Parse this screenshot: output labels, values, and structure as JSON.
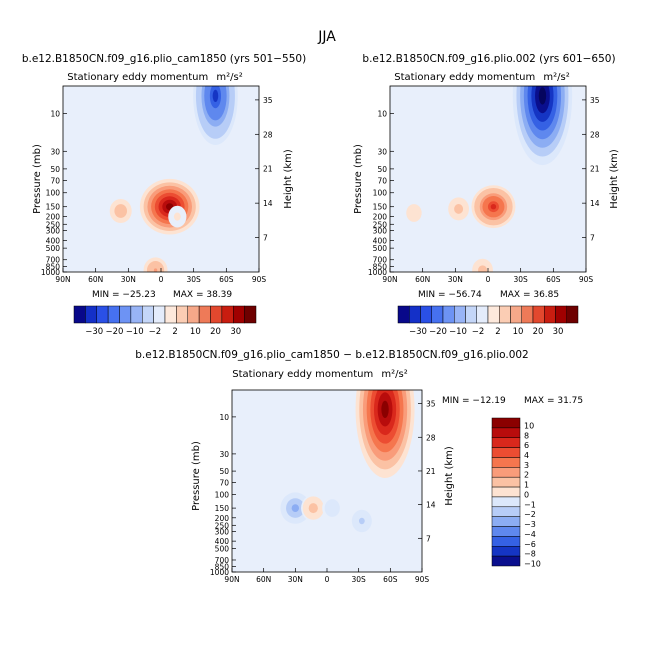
{
  "figure": {
    "title": "JJA"
  },
  "chart_data": [
    {
      "type": "heatmap",
      "case": "b.e12.B1850CN.f09_g16.plio_cam1850 (yrs 501−550)",
      "title": "Stationary eddy momentum",
      "units": "m²/s²",
      "xlabel": "",
      "ylabel": "Pressure (mb)",
      "ylabel_right": "Height (km)",
      "x_ticks": [
        "90N",
        "60N",
        "30N",
        "0",
        "30S",
        "60S",
        "90S"
      ],
      "y_ticks": [
        "10",
        "30",
        "50",
        "70",
        "100",
        "150",
        "200",
        "250",
        "300",
        "400",
        "500",
        "700",
        "850",
        "1000"
      ],
      "height_ticks": [
        "35",
        "28",
        "21",
        "14",
        "7"
      ],
      "min_label": "MIN = −25.23",
      "max_label": "MAX =  38.39",
      "min": -25.23,
      "max": 38.39,
      "features": [
        {
          "lat": -50,
          "p": 6,
          "value": -25
        },
        {
          "lat": -8,
          "p": 150,
          "value": 38
        },
        {
          "lat": 37,
          "p": 170,
          "value": 8
        },
        {
          "lat": -15,
          "p": 200,
          "value": 2
        },
        {
          "lat": 5,
          "p": 950,
          "value": 10
        }
      ]
    },
    {
      "type": "heatmap",
      "case": "b.e12.B1850CN.f09_g16.plio.002 (yrs 601−650)",
      "title": "Stationary eddy momentum",
      "units": "m²/s²",
      "ylabel": "Pressure (mb)",
      "ylabel_right": "Height (km)",
      "x_ticks": [
        "90N",
        "60N",
        "30N",
        "0",
        "30S",
        "60S",
        "90S"
      ],
      "y_ticks": [
        "10",
        "30",
        "50",
        "70",
        "100",
        "150",
        "200",
        "250",
        "300",
        "400",
        "500",
        "700",
        "850",
        "1000"
      ],
      "height_ticks": [
        "35",
        "28",
        "21",
        "14",
        "7"
      ],
      "min_label": "MIN = −56.74",
      "max_label": "MAX =  36.85",
      "min": -56.74,
      "max": 36.85,
      "features": [
        {
          "lat": -50,
          "p": 6,
          "value": -56
        },
        {
          "lat": -5,
          "p": 150,
          "value": 36
        },
        {
          "lat": 27,
          "p": 160,
          "value": 10
        },
        {
          "lat": 68,
          "p": 180,
          "value": 6
        },
        {
          "lat": 5,
          "p": 950,
          "value": 10
        }
      ]
    },
    {
      "type": "heatmap",
      "case": "b.e12.B1850CN.f09_g16.plio_cam1850 − b.e12.B1850CN.f09_g16.plio.002",
      "title": "Stationary eddy momentum",
      "units": "m²/s²",
      "ylabel": "Pressure (mb)",
      "ylabel_right": "Height (km)",
      "x_ticks": [
        "90N",
        "60N",
        "30N",
        "0",
        "30S",
        "60S",
        "90S"
      ],
      "y_ticks": [
        "10",
        "30",
        "50",
        "70",
        "100",
        "150",
        "200",
        "250",
        "300",
        "400",
        "500",
        "700",
        "850",
        "1000"
      ],
      "height_ticks": [
        "35",
        "28",
        "21",
        "14",
        "7"
      ],
      "min_label": "MIN = −12.19",
      "max_label": "MAX =  31.75",
      "min": -12.19,
      "max": 31.75,
      "features": [
        {
          "lat": -55,
          "p": 8,
          "value": 31
        },
        {
          "lat": 30,
          "p": 150,
          "value": -10
        },
        {
          "lat": 13,
          "p": 150,
          "value": 6
        },
        {
          "lat": -33,
          "p": 220,
          "value": -5
        },
        {
          "lat": -5,
          "p": 150,
          "value": -3
        }
      ]
    }
  ],
  "colorbars": {
    "top": {
      "labels": [
        "−30",
        "−20",
        "−10",
        "−2",
        "2",
        "10",
        "20",
        "30"
      ],
      "colors": [
        "#08088a",
        "#1430c8",
        "#2a50e6",
        "#4671f0",
        "#6d93f4",
        "#98b4f6",
        "#c4d6f8",
        "#e4ecfb",
        "#fde9dc",
        "#fbcdb4",
        "#f6a889",
        "#ee7a58",
        "#e2482e",
        "#c91d10",
        "#a00000",
        "#6e0000"
      ]
    },
    "bottom": {
      "labels": [
        "10",
        "8",
        "6",
        "4",
        "3",
        "2",
        "1",
        "0",
        "−1",
        "−2",
        "−3",
        "−4",
        "−6",
        "−8",
        "−10"
      ],
      "colors": [
        "#8b0000",
        "#b80c0c",
        "#d9281c",
        "#ec4d32",
        "#f5764e",
        "#f99c7a",
        "#fbc2a4",
        "#fde3d2",
        "#dce8fb",
        "#b7cdf7",
        "#8cadf3",
        "#5f88ee",
        "#3561e4",
        "#1535c4",
        "#0a0f8e"
      ]
    }
  }
}
